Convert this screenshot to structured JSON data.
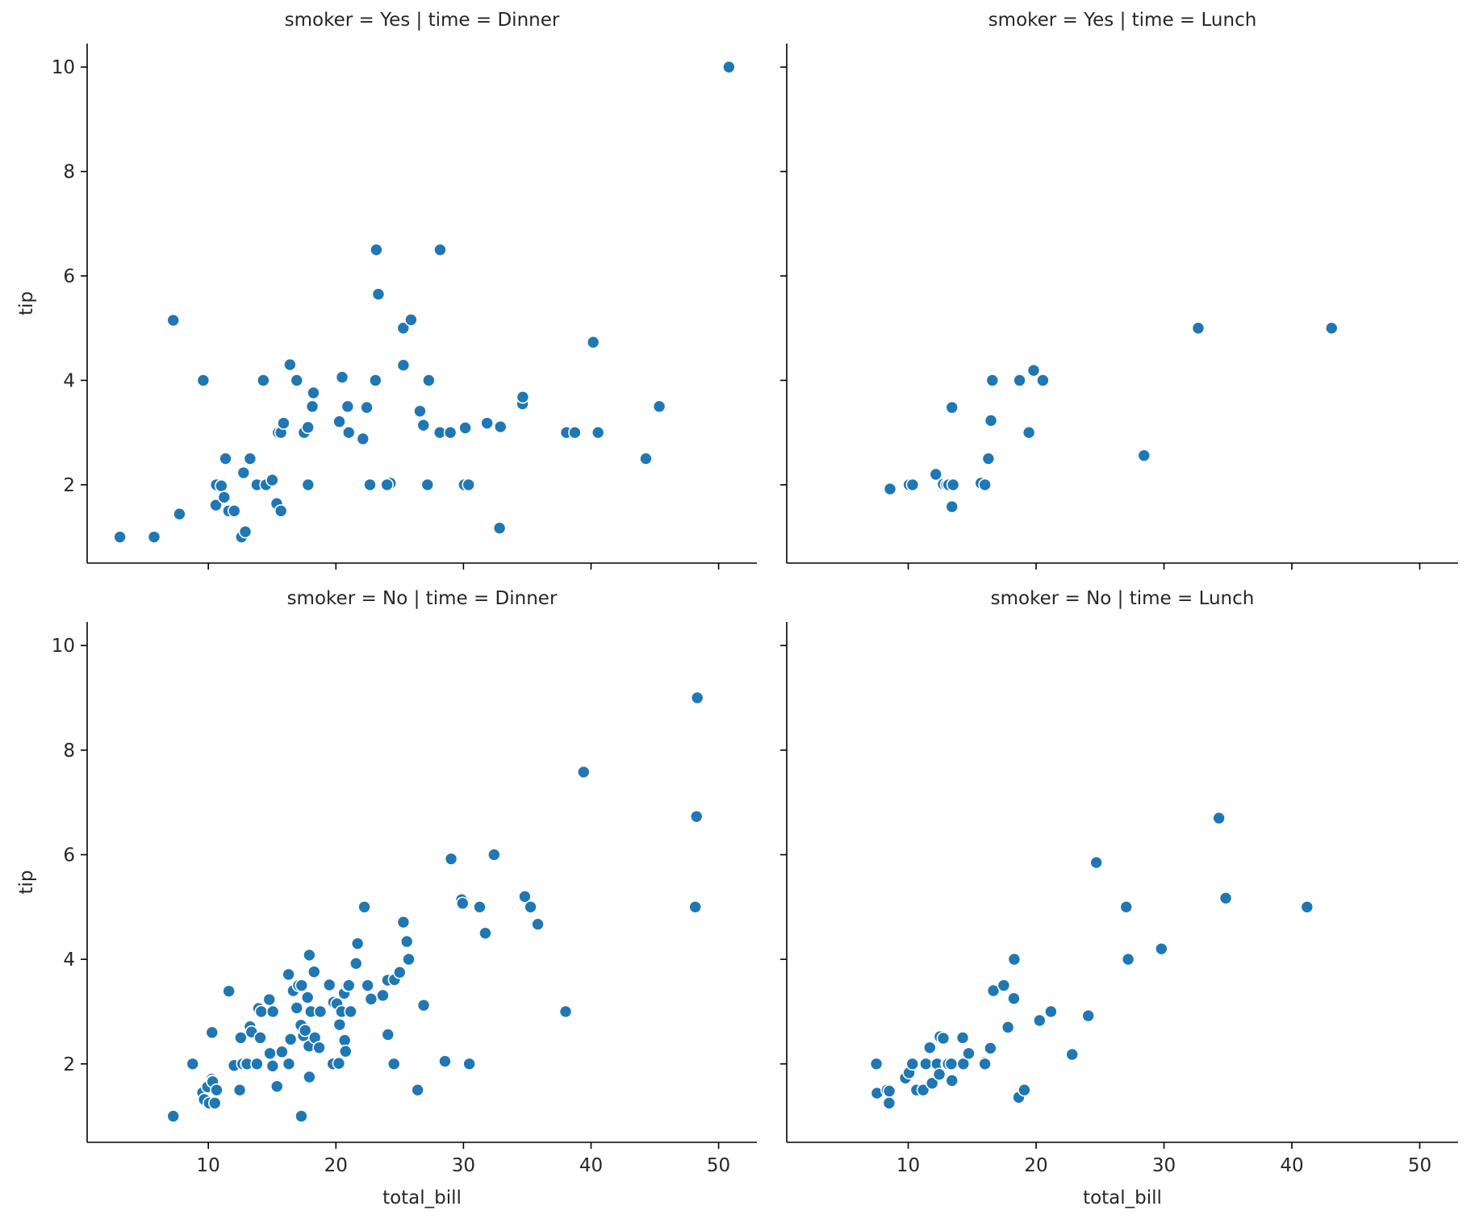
{
  "chart_data": {
    "type": "scatter",
    "layout": "facet-grid 2x2",
    "xlabel": "total_bill",
    "ylabel": "tip",
    "xlim": [
      0.5,
      53
    ],
    "ylim": [
      0.5,
      10.45
    ],
    "xticks": [
      10,
      20,
      30,
      40,
      50
    ],
    "yticks": [
      2,
      4,
      6,
      8,
      10
    ],
    "sharex": true,
    "sharey": true,
    "grid": false,
    "color": "#1f77b4",
    "panels": [
      {
        "title": "smoker = Yes | time = Dinner",
        "points": [
          [
            3.07,
            1.0
          ],
          [
            5.75,
            1.0
          ],
          [
            7.25,
            5.15
          ],
          [
            7.74,
            1.44
          ],
          [
            9.6,
            4.0
          ],
          [
            10.59,
            1.61
          ],
          [
            10.63,
            2.0
          ],
          [
            11.02,
            1.98
          ],
          [
            11.24,
            1.76
          ],
          [
            11.35,
            2.5
          ],
          [
            11.59,
            1.5
          ],
          [
            12.03,
            1.5
          ],
          [
            12.6,
            1.0
          ],
          [
            12.76,
            2.23
          ],
          [
            12.9,
            1.1
          ],
          [
            13.27,
            2.5
          ],
          [
            13.81,
            2.0
          ],
          [
            14.31,
            4.0
          ],
          [
            14.52,
            2.0
          ],
          [
            15.01,
            2.09
          ],
          [
            15.36,
            1.64
          ],
          [
            15.48,
            3.0
          ],
          [
            15.69,
            1.5
          ],
          [
            15.69,
            3.0
          ],
          [
            15.9,
            3.18
          ],
          [
            16.4,
            4.3
          ],
          [
            16.93,
            4.0
          ],
          [
            17.51,
            3.0
          ],
          [
            17.81,
            3.1
          ],
          [
            17.82,
            2.0
          ],
          [
            18.15,
            3.5
          ],
          [
            18.24,
            3.76
          ],
          [
            20.27,
            3.21
          ],
          [
            20.49,
            4.06
          ],
          [
            20.92,
            3.5
          ],
          [
            21.01,
            3.0
          ],
          [
            22.12,
            2.88
          ],
          [
            22.42,
            3.48
          ],
          [
            22.67,
            2.0
          ],
          [
            23.1,
            4.0
          ],
          [
            23.17,
            6.5
          ],
          [
            23.33,
            5.65
          ],
          [
            24.27,
            2.03
          ],
          [
            24.01,
            2.0
          ],
          [
            25.28,
            5.0
          ],
          [
            25.29,
            4.29
          ],
          [
            25.89,
            5.16
          ],
          [
            26.59,
            3.41
          ],
          [
            26.86,
            3.14
          ],
          [
            27.28,
            4.0
          ],
          [
            27.18,
            2.0
          ],
          [
            28.15,
            3.0
          ],
          [
            28.17,
            6.5
          ],
          [
            28.97,
            3.0
          ],
          [
            30.06,
            2.0
          ],
          [
            30.4,
            2.0
          ],
          [
            30.14,
            3.09
          ],
          [
            31.85,
            3.18
          ],
          [
            32.83,
            1.17
          ],
          [
            32.9,
            3.11
          ],
          [
            34.63,
            3.55
          ],
          [
            34.65,
            3.68
          ],
          [
            38.07,
            3.0
          ],
          [
            38.73,
            3.0
          ],
          [
            40.17,
            4.73
          ],
          [
            40.55,
            3.0
          ],
          [
            44.3,
            2.5
          ],
          [
            45.35,
            3.5
          ],
          [
            50.81,
            10.0
          ]
        ]
      },
      {
        "title": "smoker = Yes | time = Lunch",
        "points": [
          [
            8.58,
            1.92
          ],
          [
            10.07,
            2.0
          ],
          [
            10.34,
            2.0
          ],
          [
            12.16,
            2.2
          ],
          [
            12.74,
            2.01
          ],
          [
            13.0,
            2.0
          ],
          [
            13.16,
            2.0
          ],
          [
            13.42,
            3.48
          ],
          [
            13.42,
            1.58
          ],
          [
            13.51,
            2.0
          ],
          [
            15.69,
            2.03
          ],
          [
            16.0,
            2.0
          ],
          [
            16.27,
            2.5
          ],
          [
            16.47,
            3.23
          ],
          [
            16.58,
            4.0
          ],
          [
            18.71,
            4.0
          ],
          [
            19.44,
            3.0
          ],
          [
            19.81,
            4.19
          ],
          [
            20.53,
            4.0
          ],
          [
            28.44,
            2.56
          ],
          [
            32.68,
            5.0
          ],
          [
            43.11,
            5.0
          ]
        ]
      },
      {
        "title": "smoker = No | time = Dinner",
        "points": [
          [
            7.25,
            1.0
          ],
          [
            8.77,
            2.0
          ],
          [
            9.55,
            1.45
          ],
          [
            9.68,
            1.32
          ],
          [
            9.94,
            1.56
          ],
          [
            10.07,
            1.25
          ],
          [
            10.27,
            1.71
          ],
          [
            10.29,
            2.6
          ],
          [
            10.33,
            1.67
          ],
          [
            10.34,
            1.66
          ],
          [
            10.51,
            1.25
          ],
          [
            10.65,
            1.5
          ],
          [
            11.61,
            3.39
          ],
          [
            12.02,
            1.97
          ],
          [
            12.46,
            1.5
          ],
          [
            12.54,
            2.5
          ],
          [
            12.69,
            2.0
          ],
          [
            13.0,
            2.0
          ],
          [
            13.03,
            2.0
          ],
          [
            13.27,
            2.71
          ],
          [
            13.39,
            2.61
          ],
          [
            13.81,
            2.0
          ],
          [
            13.94,
            3.06
          ],
          [
            14.07,
            2.5
          ],
          [
            14.15,
            3.0
          ],
          [
            14.78,
            3.23
          ],
          [
            14.83,
            2.2
          ],
          [
            15.04,
            1.96
          ],
          [
            15.06,
            3.0
          ],
          [
            15.38,
            1.57
          ],
          [
            15.77,
            2.23
          ],
          [
            16.21,
            2.0
          ],
          [
            16.29,
            3.71
          ],
          [
            16.31,
            2.0
          ],
          [
            16.45,
            2.47
          ],
          [
            16.66,
            3.4
          ],
          [
            16.93,
            3.07
          ],
          [
            17.07,
            3.5
          ],
          [
            17.26,
            2.74
          ],
          [
            17.29,
            1.0
          ],
          [
            17.31,
            3.5
          ],
          [
            17.46,
            2.54
          ],
          [
            17.59,
            2.64
          ],
          [
            17.78,
            3.27
          ],
          [
            17.89,
            2.34
          ],
          [
            17.92,
            4.08
          ],
          [
            17.92,
            1.75
          ],
          [
            18.04,
            3.0
          ],
          [
            18.29,
            3.76
          ],
          [
            18.35,
            2.5
          ],
          [
            18.69,
            2.31
          ],
          [
            18.78,
            3.0
          ],
          [
            19.49,
            3.51
          ],
          [
            19.77,
            2.0
          ],
          [
            19.82,
            3.18
          ],
          [
            20.08,
            3.15
          ],
          [
            20.23,
            2.01
          ],
          [
            20.29,
            2.75
          ],
          [
            20.45,
            3.0
          ],
          [
            20.65,
            3.35
          ],
          [
            20.69,
            2.45
          ],
          [
            20.76,
            2.24
          ],
          [
            20.9,
            3.5
          ],
          [
            21.01,
            3.5
          ],
          [
            21.16,
            3.0
          ],
          [
            21.58,
            3.92
          ],
          [
            21.7,
            4.3
          ],
          [
            22.23,
            5.0
          ],
          [
            22.49,
            3.5
          ],
          [
            22.76,
            3.24
          ],
          [
            23.68,
            3.31
          ],
          [
            24.06,
            3.6
          ],
          [
            24.08,
            2.56
          ],
          [
            24.55,
            2.0
          ],
          [
            24.59,
            3.61
          ],
          [
            25.0,
            3.75
          ],
          [
            25.29,
            4.71
          ],
          [
            25.56,
            4.34
          ],
          [
            25.71,
            4.0
          ],
          [
            26.41,
            1.5
          ],
          [
            26.88,
            3.12
          ],
          [
            28.55,
            2.05
          ],
          [
            29.03,
            5.92
          ],
          [
            29.85,
            5.14
          ],
          [
            29.93,
            5.07
          ],
          [
            30.46,
            2.0
          ],
          [
            31.27,
            5.0
          ],
          [
            31.71,
            4.5
          ],
          [
            32.4,
            6.0
          ],
          [
            34.81,
            5.2
          ],
          [
            35.26,
            5.0
          ],
          [
            35.83,
            4.67
          ],
          [
            38.01,
            3.0
          ],
          [
            39.42,
            7.58
          ],
          [
            48.17,
            5.0
          ],
          [
            48.27,
            6.73
          ],
          [
            48.33,
            9.0
          ]
        ]
      },
      {
        "title": "smoker = No | time = Lunch",
        "points": [
          [
            7.51,
            2.0
          ],
          [
            7.56,
            1.44
          ],
          [
            8.35,
            1.5
          ],
          [
            8.52,
            1.48
          ],
          [
            8.51,
            1.25
          ],
          [
            9.78,
            1.73
          ],
          [
            10.07,
            1.83
          ],
          [
            10.33,
            2.0
          ],
          [
            10.65,
            1.5
          ],
          [
            11.17,
            1.5
          ],
          [
            11.38,
            2.0
          ],
          [
            11.69,
            2.31
          ],
          [
            11.87,
            1.63
          ],
          [
            12.26,
            2.0
          ],
          [
            12.43,
            1.8
          ],
          [
            12.48,
            2.52
          ],
          [
            13.03,
            2.0
          ],
          [
            13.13,
            2.0
          ],
          [
            13.37,
            2.0
          ],
          [
            13.42,
            1.68
          ],
          [
            14.26,
            2.5
          ],
          [
            14.31,
            2.0
          ],
          [
            14.73,
            2.2
          ],
          [
            15.98,
            2.03
          ],
          [
            16.0,
            2.0
          ],
          [
            16.43,
            2.3
          ],
          [
            16.66,
            3.4
          ],
          [
            17.47,
            3.5
          ],
          [
            18.26,
            3.25
          ],
          [
            18.29,
            4.0
          ],
          [
            18.64,
            1.36
          ],
          [
            19.08,
            1.5
          ],
          [
            20.27,
            2.83
          ],
          [
            21.16,
            3.0
          ],
          [
            22.82,
            2.18
          ],
          [
            24.08,
            2.92
          ],
          [
            24.71,
            5.85
          ],
          [
            27.05,
            5.0
          ],
          [
            27.2,
            4.0
          ],
          [
            29.8,
            4.2
          ],
          [
            34.3,
            6.7
          ],
          [
            34.83,
            5.17
          ],
          [
            41.19,
            5.0
          ],
          [
            12.74,
            2.49
          ],
          [
            17.8,
            2.7
          ]
        ]
      }
    ]
  }
}
